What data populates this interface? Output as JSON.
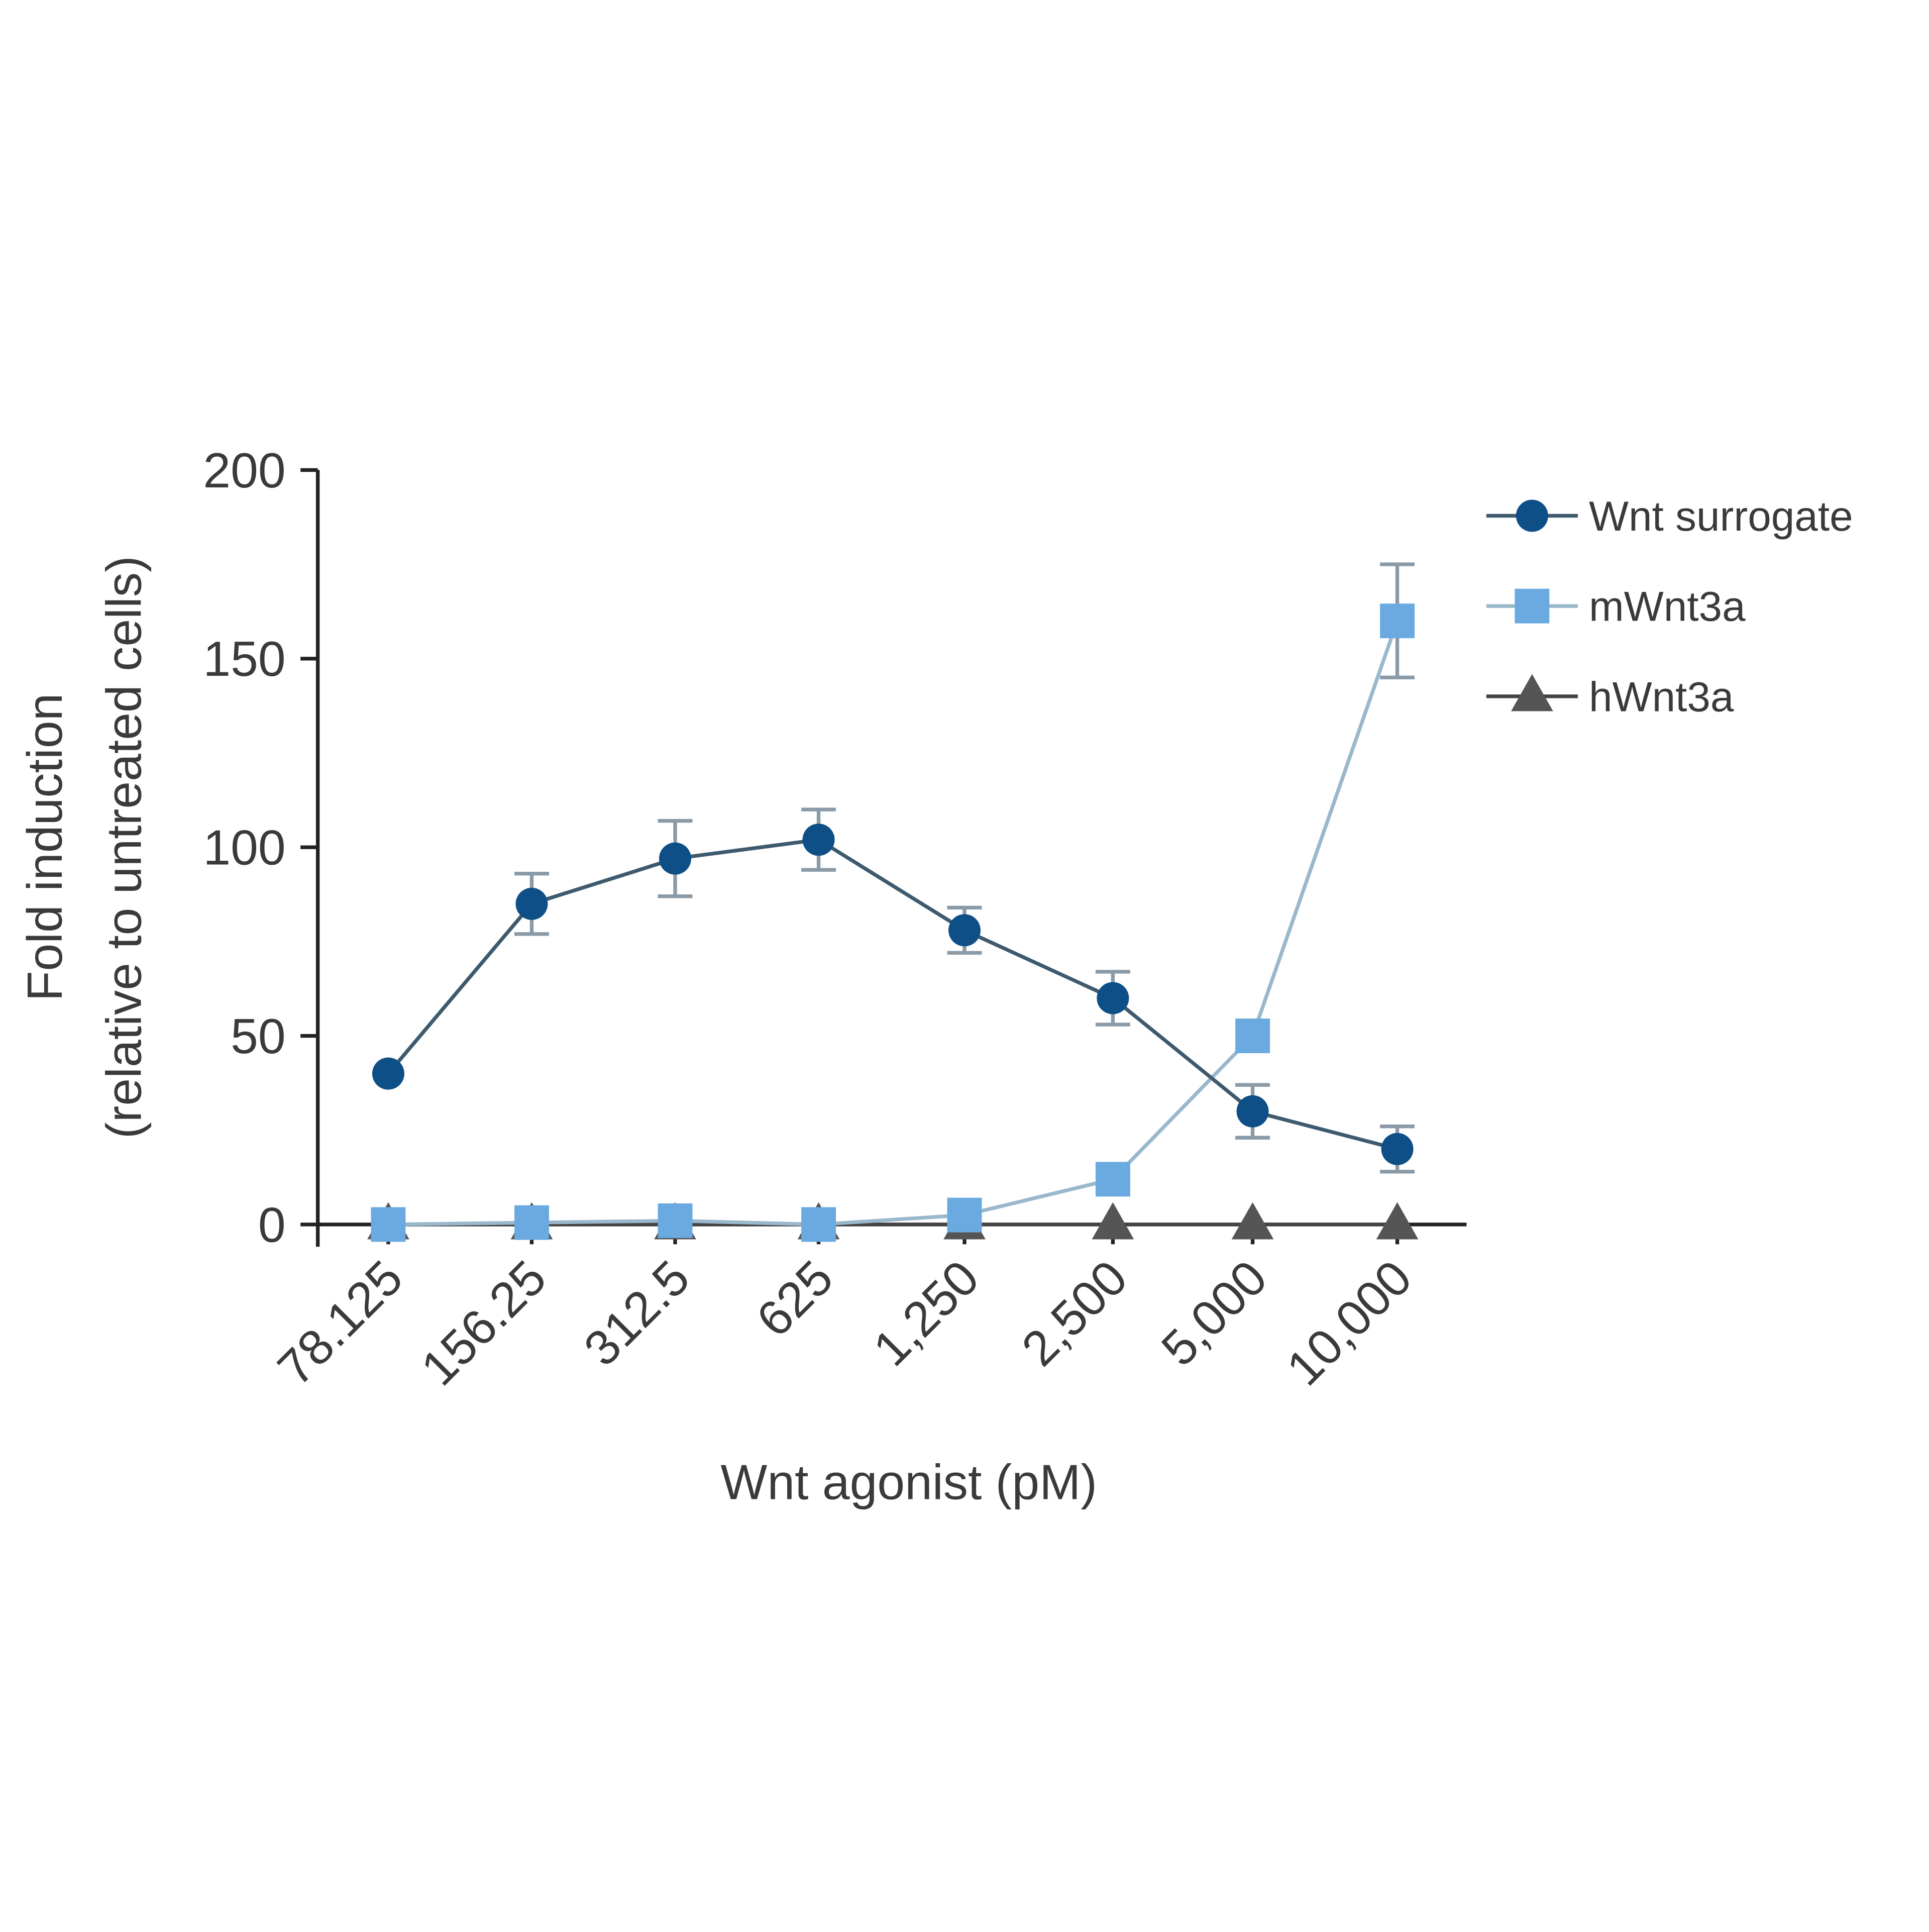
{
  "chart_data": {
    "type": "line",
    "title": "",
    "xlabel": "Wnt agonist (pM)",
    "ylabel_line1": "Fold induction",
    "ylabel_line2": "(relative to untreated cells)",
    "ylim": [
      0,
      200
    ],
    "yticks": [
      0,
      50,
      100,
      150,
      200
    ],
    "categories": [
      "78.125",
      "156.25",
      "312.5",
      "625",
      "1,250",
      "2,500",
      "5,000",
      "10,000"
    ],
    "grid": false,
    "legend_position": "right",
    "series": [
      {
        "name": "Wnt surrogate",
        "marker": "circle",
        "color": "#0d4f86",
        "line_color": "#3e5a6e",
        "values": [
          40,
          85,
          97,
          102,
          78,
          60,
          30,
          20
        ],
        "error": [
          0,
          8,
          10,
          8,
          6,
          7,
          7,
          6
        ]
      },
      {
        "name": "mWnt3a",
        "marker": "square",
        "color": "#6aaae0",
        "line_color": "#9ab8cc",
        "values": [
          0,
          0.5,
          1,
          0,
          2.5,
          12,
          50,
          160
        ],
        "error": [
          0,
          0,
          0,
          0,
          0,
          0,
          0,
          15
        ]
      },
      {
        "name": "hWnt3a",
        "marker": "triangle",
        "color": "#555555",
        "line_color": "#444444",
        "values": [
          0,
          0,
          0,
          0,
          0,
          0,
          0,
          0
        ],
        "error": [
          0,
          0,
          0,
          0,
          0,
          0,
          0,
          0
        ]
      }
    ]
  }
}
